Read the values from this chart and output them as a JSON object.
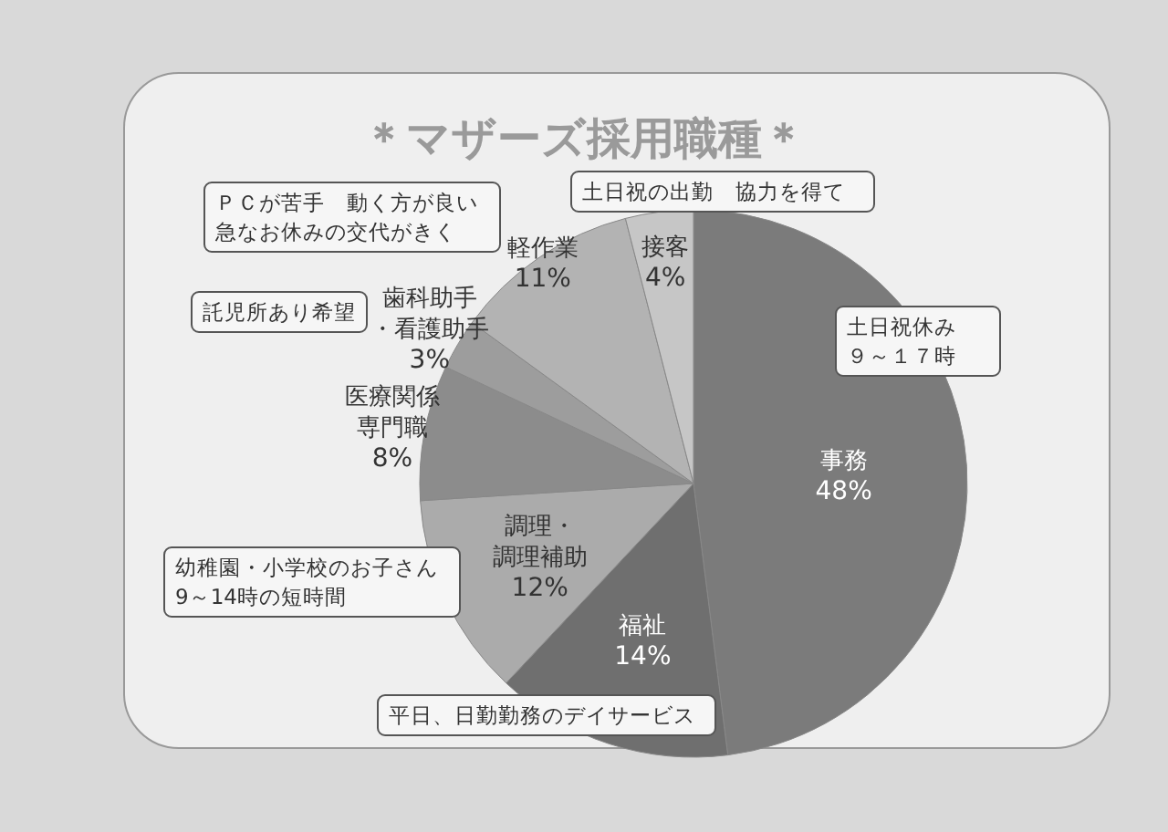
{
  "chart_data": {
    "type": "pie",
    "title": "＊マザーズ採用職種＊",
    "categories": [
      "事務",
      "福祉",
      "調理・調理補助",
      "医療関係専門職",
      "歯科助手・看護助手",
      "軽作業",
      "接客"
    ],
    "values": [
      48,
      14,
      12,
      8,
      3,
      11,
      4
    ],
    "value_labels": [
      "48%",
      "14%",
      "12%",
      "8%",
      "3%",
      "11%",
      "4%"
    ],
    "colors": [
      "#7b7b7b",
      "#6f6f6f",
      "#ababab",
      "#8c8c8c",
      "#9d9d9d",
      "#b3b3b3",
      "#c6c6c6"
    ],
    "annotations": [
      "ＰＣが苦手　動く方が良い急なお休みの交代がきく",
      "土日祝の出勤　協力を得て",
      "託児所あり希望",
      "土日祝休み９～１７時",
      "幼稚園・小学校のお子さん9～14時の短時間",
      "平日、日勤勤務のデイサービス"
    ]
  }
}
